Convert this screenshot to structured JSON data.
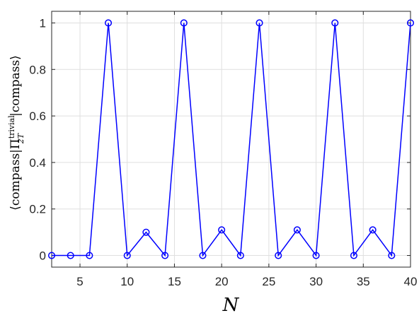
{
  "chart_data": {
    "type": "line",
    "title": "",
    "xlabel": "N",
    "ylabel": {
      "left": "⟨compass|Π",
      "sup": "trivial",
      "sub": "2T",
      "right": "|compass⟩"
    },
    "xlim": [
      2,
      40
    ],
    "ylim": [
      -0.05,
      1.05
    ],
    "xticks": [
      5,
      10,
      15,
      20,
      25,
      30,
      35,
      40
    ],
    "yticks": [
      0,
      0.2,
      0.4,
      0.6,
      0.8,
      1
    ],
    "xtick_labels": [
      "5",
      "10",
      "15",
      "20",
      "25",
      "30",
      "35",
      "40"
    ],
    "ytick_labels": [
      "0",
      "0.2",
      "0.4",
      "0.6",
      "0.8",
      "1"
    ],
    "grid": true,
    "legend": "none",
    "series": [
      {
        "color": "#0000ff",
        "marker": "circle",
        "x": [
          2,
          4,
          6,
          8,
          10,
          12,
          14,
          16,
          18,
          20,
          22,
          24,
          26,
          28,
          30,
          32,
          34,
          36,
          38,
          40
        ],
        "y": [
          0,
          0,
          0,
          1,
          0,
          0.1,
          0,
          1,
          0,
          0.11,
          0,
          1,
          0,
          0.11,
          0,
          1,
          0,
          0.11,
          0,
          1
        ]
      }
    ]
  }
}
